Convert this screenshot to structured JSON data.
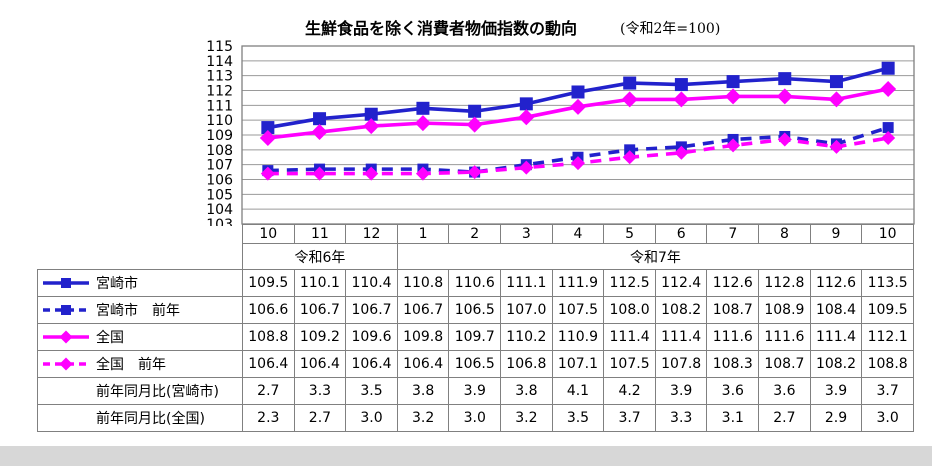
{
  "chart_data": {
    "type": "line",
    "title": "生鮮食品を除く消費者物価指数の動向",
    "base_note": "(令和2年=100)",
    "ylim": [
      103,
      115
    ],
    "ytick_step": 1,
    "grid": true,
    "legend_position": "table-left-column",
    "months": [
      "10",
      "11",
      "12",
      "1",
      "2",
      "3",
      "4",
      "5",
      "6",
      "7",
      "8",
      "9",
      "10"
    ],
    "year_groups": [
      {
        "label": "令和6年",
        "span": 3
      },
      {
        "label": "令和7年",
        "span": 10
      }
    ],
    "series": [
      {
        "key": "miyazaki",
        "name": "宮崎市",
        "color": "#2222CC",
        "line_style": "solid",
        "marker": "square",
        "values": [
          109.5,
          110.1,
          110.4,
          110.8,
          110.6,
          111.1,
          111.9,
          112.5,
          112.4,
          112.6,
          112.8,
          112.6,
          113.5
        ]
      },
      {
        "key": "miyazaki-prev",
        "name": "宮崎市　前年",
        "color": "#2222CC",
        "line_style": "dashed",
        "marker": "square",
        "values": [
          106.6,
          106.7,
          106.7,
          106.7,
          106.5,
          107.0,
          107.5,
          108.0,
          108.2,
          108.7,
          108.9,
          108.4,
          109.5
        ]
      },
      {
        "key": "zenkoku",
        "name": "全国",
        "color": "#FF00FF",
        "line_style": "solid",
        "marker": "diamond",
        "values": [
          108.8,
          109.2,
          109.6,
          109.8,
          109.7,
          110.2,
          110.9,
          111.4,
          111.4,
          111.6,
          111.6,
          111.4,
          112.1
        ]
      },
      {
        "key": "zenkoku-prev",
        "name": "全国　前年",
        "color": "#FF00FF",
        "line_style": "dashed",
        "marker": "diamond",
        "values": [
          106.4,
          106.4,
          106.4,
          106.4,
          106.5,
          106.8,
          107.1,
          107.5,
          107.8,
          108.3,
          108.7,
          108.2,
          108.8
        ]
      }
    ],
    "yoy_rows": [
      {
        "key": "yoy-miyazaki",
        "name": "前年同月比(宮崎市)",
        "values": [
          2.7,
          3.3,
          3.5,
          3.8,
          3.9,
          3.8,
          4.1,
          4.2,
          3.9,
          3.6,
          3.6,
          3.9,
          3.7
        ]
      },
      {
        "key": "yoy-zenkoku",
        "name": "前年同月比(全国)",
        "values": [
          2.3,
          2.7,
          3.0,
          3.2,
          3.0,
          3.2,
          3.5,
          3.7,
          3.3,
          3.1,
          2.7,
          2.9,
          3.0
        ]
      }
    ]
  },
  "colors": {
    "miyazaki_blue": "#2222CC",
    "zenkoku_magenta": "#FF00FF",
    "grid_line": "#9A9A9A",
    "plot_border": "#808080",
    "table_border": "#808080"
  }
}
